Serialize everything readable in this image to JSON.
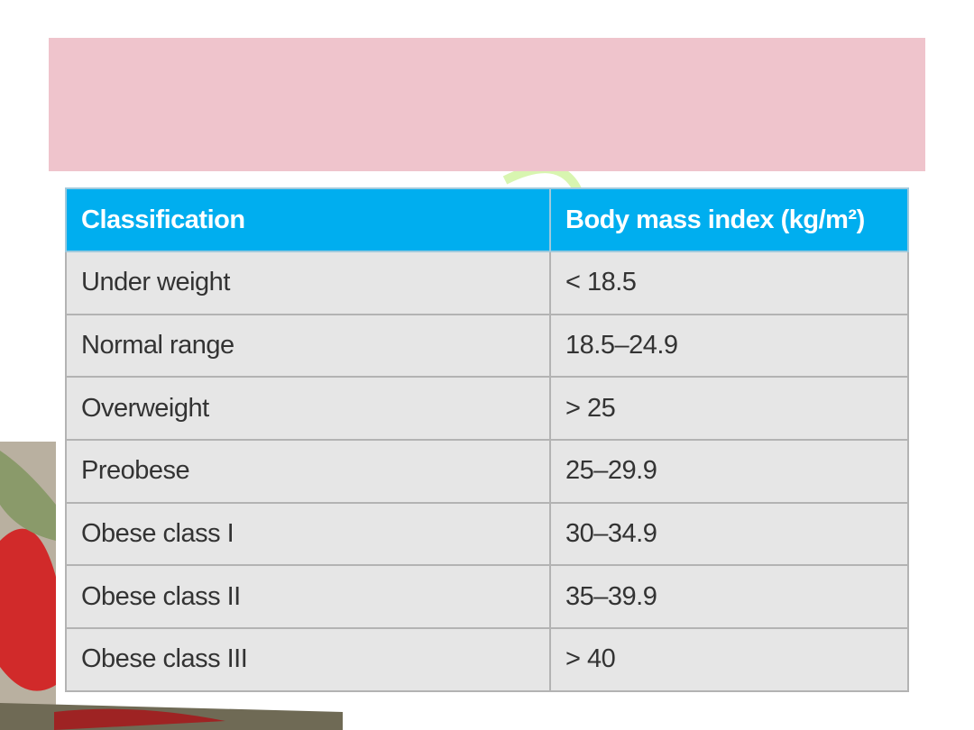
{
  "table": {
    "header": [
      "Classification",
      "Body mass index (kg/m²)"
    ],
    "rows": [
      [
        "Under weight",
        "< 18.5"
      ],
      [
        "Normal range",
        "18.5–24.9"
      ],
      [
        "Overweight",
        "> 25"
      ],
      [
        "Preobese",
        "25–29.9"
      ],
      [
        "Obese class I",
        "30–34.9"
      ],
      [
        "Obese class II",
        "35–39.9"
      ],
      [
        "Obese class III",
        "> 40"
      ]
    ]
  }
}
